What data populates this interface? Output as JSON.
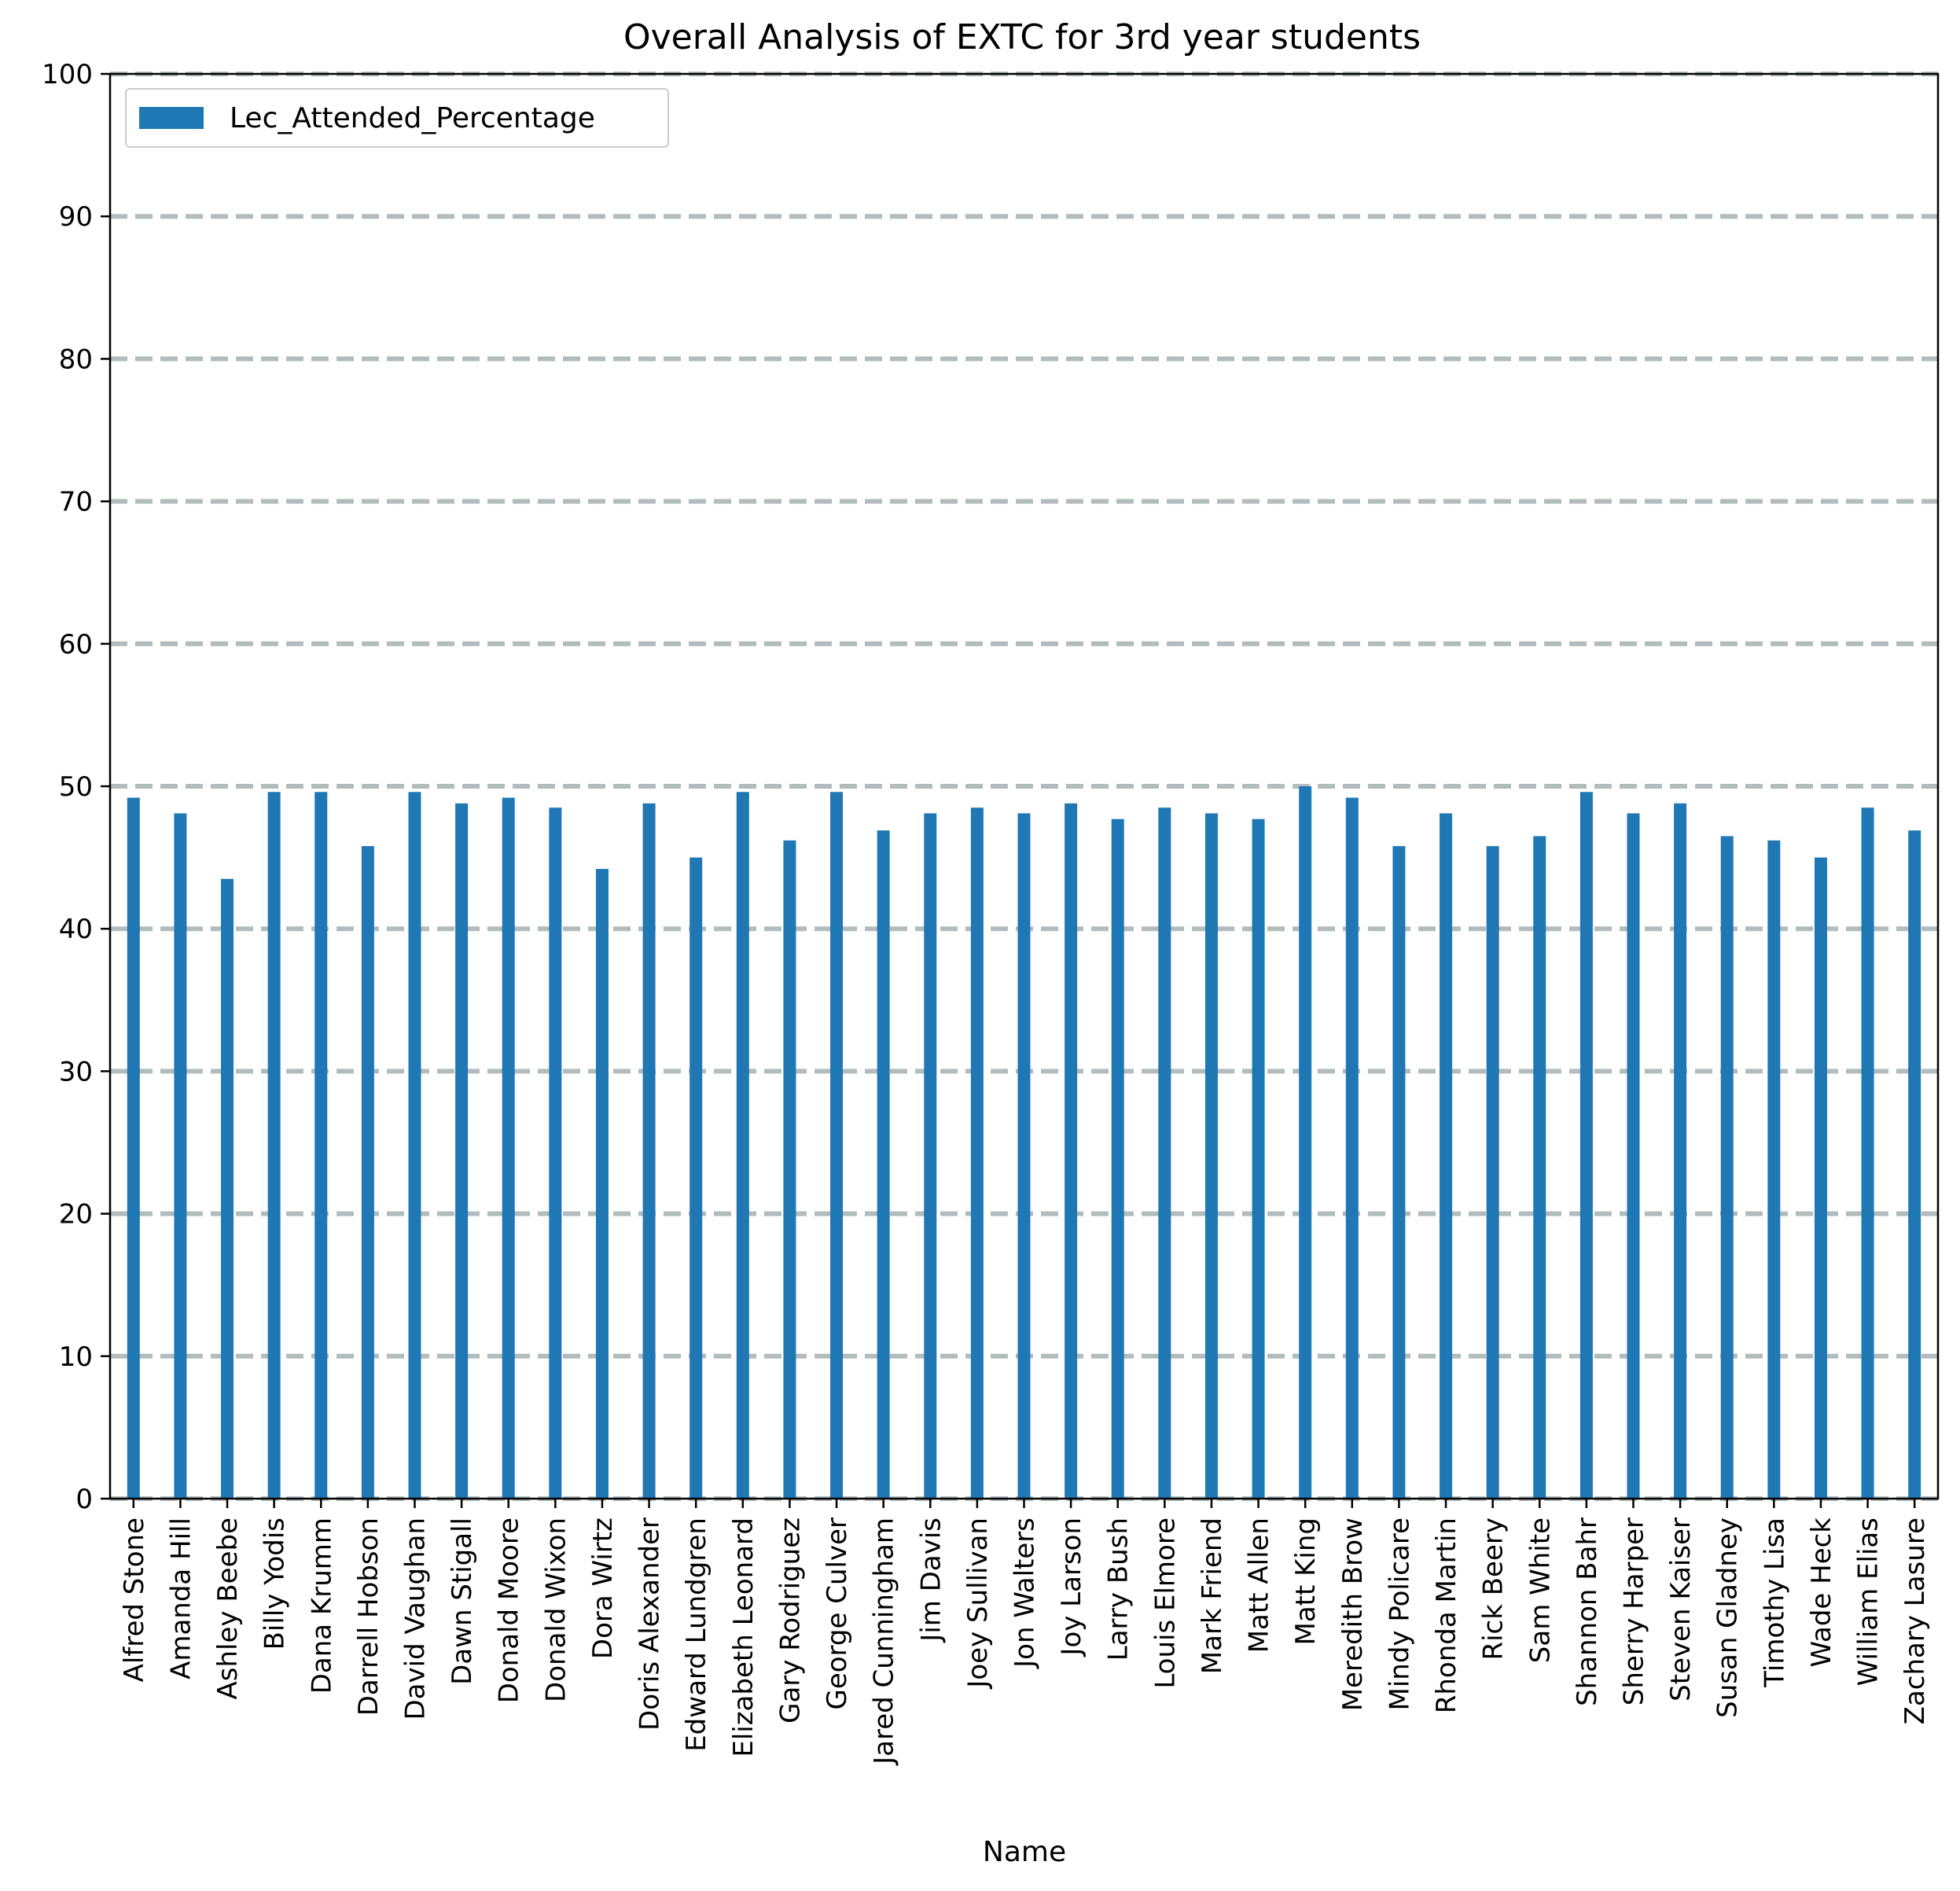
{
  "chart_data": {
    "type": "bar",
    "title": "Overall Analysis of EXTC for 3rd year students",
    "xlabel": "Name",
    "ylabel": "",
    "ylim": [
      0,
      100
    ],
    "yticks": [
      0,
      10,
      20,
      30,
      40,
      50,
      60,
      70,
      80,
      90,
      100
    ],
    "grid": "horizontal dashed",
    "grid_color": "#b2bcbd",
    "legend_position": "top-left",
    "series": [
      {
        "name": "Lec_Attended_Percentage",
        "color": "#1f77b4",
        "values": [
          49.2,
          48.1,
          43.5,
          49.6,
          49.6,
          45.8,
          49.6,
          48.8,
          49.2,
          48.5,
          44.2,
          48.8,
          45.0,
          49.6,
          46.2,
          49.6,
          46.9,
          48.1,
          48.5,
          48.1,
          48.8,
          47.7,
          48.5,
          48.1,
          47.7,
          50.0,
          49.2,
          45.8,
          48.1,
          45.8,
          46.5,
          49.6,
          48.1,
          48.8,
          46.5,
          46.2,
          45.0,
          48.5,
          46.9
        ]
      }
    ],
    "categories": [
      "Alfred Stone",
      "Amanda Hill",
      "Ashley Beebe",
      "Billy Yodis",
      "Dana Krumm",
      "Darrell Hobson",
      "David Vaughan",
      "Dawn Stigall",
      "Donald Moore",
      "Donald Wixon",
      "Dora Wirtz",
      "Doris Alexander",
      "Edward Lundgren",
      "Elizabeth Leonard",
      "Gary Rodriguez",
      "George Culver",
      "Jared Cunningham",
      "Jim Davis",
      "Joey Sullivan",
      "Jon Walters",
      "Joy Larson",
      "Larry Bush",
      "Louis Elmore",
      "Mark Friend",
      "Matt Allen",
      "Matt King",
      "Meredith Brow",
      "Mindy Policare",
      "Rhonda Martin",
      "Rick Beery",
      "Sam White",
      "Shannon Bahr",
      "Sherry Harper",
      "Steven Kaiser",
      "Susan Gladney",
      "Timothy Lisa",
      "Wade Heck",
      "William Elias",
      "Zachary Lasure"
    ]
  }
}
